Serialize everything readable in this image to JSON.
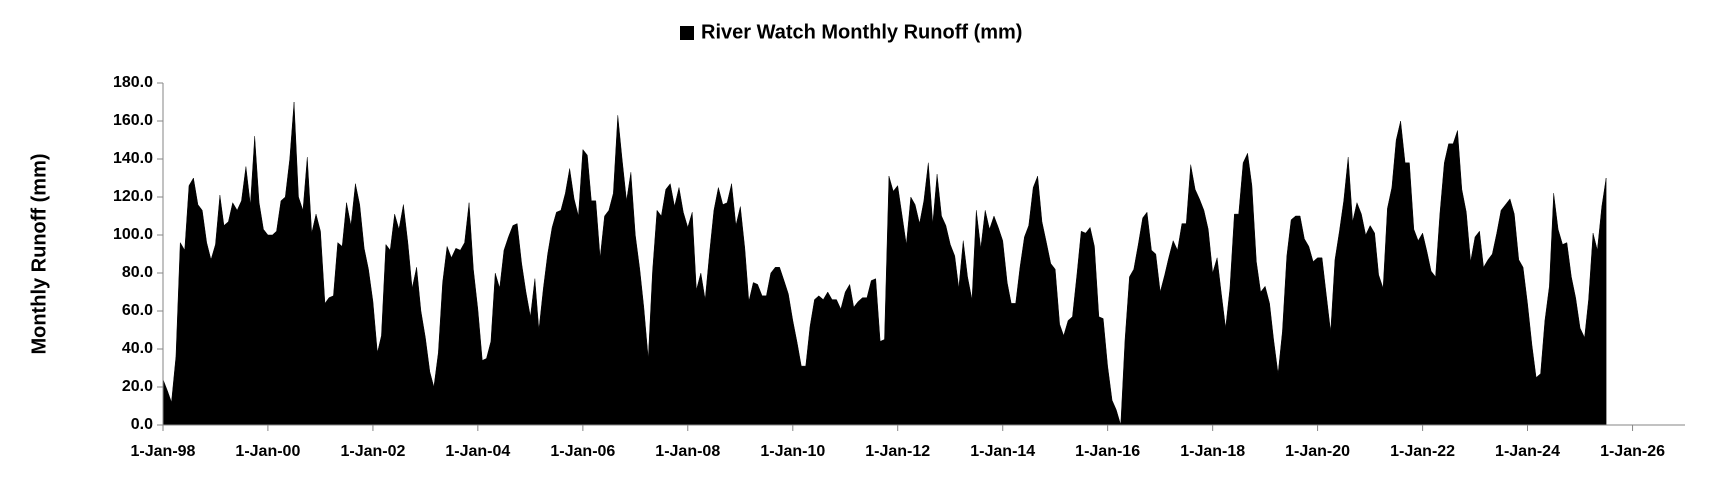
{
  "chart_data": {
    "type": "area",
    "y_label": "Monthly Runoff (mm)",
    "legend": "top",
    "x": [
      "1998-01-01",
      "1998-02-01",
      "1998-03-01",
      "1998-04-01",
      "1998-05-01",
      "1998-06-01",
      "1998-07-01",
      "1998-08-01",
      "1998-09-01",
      "1998-10-01",
      "1998-11-01",
      "1998-12-01",
      "1999-01-01",
      "1999-02-01",
      "1999-03-01",
      "1999-04-01",
      "1999-05-01",
      "1999-06-01",
      "1999-07-01",
      "1999-08-01",
      "1999-09-01",
      "1999-10-01",
      "1999-11-01",
      "1999-12-01",
      "2000-01-01",
      "2000-02-01",
      "2000-03-01",
      "2000-04-01",
      "2000-05-01",
      "2000-06-01",
      "2000-07-01",
      "2000-08-01",
      "2000-09-01",
      "2000-10-01",
      "2000-11-01",
      "2000-12-01",
      "2001-01-01",
      "2001-02-01",
      "2001-03-01",
      "2001-04-01",
      "2001-05-01",
      "2001-06-01",
      "2001-07-01",
      "2001-08-01",
      "2001-09-01",
      "2001-10-01",
      "2001-11-01",
      "2001-12-01",
      "2002-01-01",
      "2002-02-01",
      "2002-03-01",
      "2002-04-01",
      "2002-05-01",
      "2002-06-01",
      "2002-07-01",
      "2002-08-01",
      "2002-09-01",
      "2002-10-01",
      "2002-11-01",
      "2002-12-01",
      "2003-01-01",
      "2003-02-01",
      "2003-03-01",
      "2003-04-01",
      "2003-05-01",
      "2003-06-01",
      "2003-07-01",
      "2003-08-01",
      "2003-09-01",
      "2003-10-01",
      "2003-11-01",
      "2003-12-01",
      "2004-01-01",
      "2004-02-01",
      "2004-03-01",
      "2004-04-01",
      "2004-05-01",
      "2004-06-01",
      "2004-07-01",
      "2004-08-01",
      "2004-09-01",
      "2004-10-01",
      "2004-11-01",
      "2004-12-01",
      "2005-01-01",
      "2005-02-01",
      "2005-03-01",
      "2005-04-01",
      "2005-05-01",
      "2005-06-01",
      "2005-07-01",
      "2005-08-01",
      "2005-09-01",
      "2005-10-01",
      "2005-11-01",
      "2005-12-01",
      "2006-01-01",
      "2006-02-01",
      "2006-03-01",
      "2006-04-01",
      "2006-05-01",
      "2006-06-01",
      "2006-07-01",
      "2006-08-01",
      "2006-09-01",
      "2006-10-01",
      "2006-11-01",
      "2006-12-01",
      "2007-01-01",
      "2007-02-01",
      "2007-03-01",
      "2007-04-01",
      "2007-05-01",
      "2007-06-01",
      "2007-07-01",
      "2007-08-01",
      "2007-09-01",
      "2007-10-01",
      "2007-11-01",
      "2007-12-01",
      "2008-01-01",
      "2008-02-01",
      "2008-03-01",
      "2008-04-01",
      "2008-05-01",
      "2008-06-01",
      "2008-07-01",
      "2008-08-01",
      "2008-09-01",
      "2008-10-01",
      "2008-11-01",
      "2008-12-01",
      "2009-01-01",
      "2009-02-01",
      "2009-03-01",
      "2009-04-01",
      "2009-05-01",
      "2009-06-01",
      "2009-07-01",
      "2009-08-01",
      "2009-09-01",
      "2009-10-01",
      "2009-11-01",
      "2009-12-01",
      "2010-01-01",
      "2010-02-01",
      "2010-03-01",
      "2010-04-01",
      "2010-05-01",
      "2010-06-01",
      "2010-07-01",
      "2010-08-01",
      "2010-09-01",
      "2010-10-01",
      "2010-11-01",
      "2010-12-01",
      "2011-01-01",
      "2011-02-01",
      "2011-03-01",
      "2011-04-01",
      "2011-05-01",
      "2011-06-01",
      "2011-07-01",
      "2011-08-01",
      "2011-09-01",
      "2011-10-01",
      "2011-11-01",
      "2011-12-01",
      "2012-01-01",
      "2012-02-01",
      "2012-03-01",
      "2012-04-01",
      "2012-05-01",
      "2012-06-01",
      "2012-07-01",
      "2012-08-01",
      "2012-09-01",
      "2012-10-01",
      "2012-11-01",
      "2012-12-01",
      "2013-01-01",
      "2013-02-01",
      "2013-03-01",
      "2013-04-01",
      "2013-05-01",
      "2013-06-01",
      "2013-07-01",
      "2013-08-01",
      "2013-09-01",
      "2013-10-01",
      "2013-11-01",
      "2013-12-01",
      "2014-01-01",
      "2014-02-01",
      "2014-03-01",
      "2014-04-01",
      "2014-05-01",
      "2014-06-01",
      "2014-07-01",
      "2014-08-01",
      "2014-09-01",
      "2014-10-01",
      "2014-11-01",
      "2014-12-01",
      "2015-01-01",
      "2015-02-01",
      "2015-03-01",
      "2015-04-01",
      "2015-05-01",
      "2015-06-01",
      "2015-07-01",
      "2015-08-01",
      "2015-09-01",
      "2015-10-01",
      "2015-11-01",
      "2015-12-01",
      "2016-01-01",
      "2016-02-01",
      "2016-03-01",
      "2016-04-01",
      "2016-05-01",
      "2016-06-01",
      "2016-07-01",
      "2016-08-01",
      "2016-09-01",
      "2016-10-01",
      "2016-11-01",
      "2016-12-01",
      "2017-01-01",
      "2017-02-01",
      "2017-03-01",
      "2017-04-01",
      "2017-05-01",
      "2017-06-01",
      "2017-07-01",
      "2017-08-01",
      "2017-09-01",
      "2017-10-01",
      "2017-11-01",
      "2017-12-01",
      "2018-01-01",
      "2018-02-01",
      "2018-03-01",
      "2018-04-01",
      "2018-05-01",
      "2018-06-01",
      "2018-07-01",
      "2018-08-01",
      "2018-09-01",
      "2018-10-01",
      "2018-11-01",
      "2018-12-01",
      "2019-01-01",
      "2019-02-01",
      "2019-03-01",
      "2019-04-01",
      "2019-05-01",
      "2019-06-01",
      "2019-07-01",
      "2019-08-01",
      "2019-09-01",
      "2019-10-01",
      "2019-11-01",
      "2019-12-01",
      "2020-01-01",
      "2020-02-01",
      "2020-03-01",
      "2020-04-01",
      "2020-05-01",
      "2020-06-01",
      "2020-07-01",
      "2020-08-01",
      "2020-09-01",
      "2020-10-01",
      "2020-11-01",
      "2020-12-01",
      "2021-01-01",
      "2021-02-01",
      "2021-03-01",
      "2021-04-01",
      "2021-05-01",
      "2021-06-01",
      "2021-07-01",
      "2021-08-01",
      "2021-09-01",
      "2021-10-01",
      "2021-11-01",
      "2021-12-01",
      "2022-01-01",
      "2022-02-01",
      "2022-03-01",
      "2022-04-01",
      "2022-05-01",
      "2022-06-01",
      "2022-07-01",
      "2022-08-01",
      "2022-09-01",
      "2022-10-01",
      "2022-11-01",
      "2022-12-01",
      "2023-01-01",
      "2023-02-01",
      "2023-03-01",
      "2023-04-01",
      "2023-05-01",
      "2023-06-01",
      "2023-07-01",
      "2023-08-01",
      "2023-09-01",
      "2023-10-01",
      "2023-11-01",
      "2023-12-01",
      "2024-01-01",
      "2024-02-01",
      "2024-03-01",
      "2024-04-01",
      "2024-05-01",
      "2024-06-01",
      "2024-07-01",
      "2024-08-01",
      "2024-09-01",
      "2024-10-01",
      "2024-11-01",
      "2024-12-01",
      "2025-01-01",
      "2025-02-01",
      "2025-03-01",
      "2025-04-01",
      "2025-05-01",
      "2025-06-01",
      "2025-07-01"
    ],
    "series": [
      {
        "name": "River Watch Monthly Runoff (mm)",
        "color": "#000000",
        "values": [
          24,
          18,
          12,
          36,
          96,
          92,
          126,
          130,
          116,
          113,
          96,
          87,
          95,
          121,
          105,
          107,
          117,
          113,
          118,
          136,
          116,
          152,
          117,
          103,
          100,
          100,
          102,
          118,
          120,
          140,
          170,
          120,
          113,
          141,
          101,
          111,
          102,
          64,
          67,
          68,
          96,
          94,
          117,
          105,
          127,
          116,
          93,
          82,
          65,
          38,
          47,
          95,
          92,
          111,
          103,
          116,
          96,
          72,
          83,
          60,
          46,
          28,
          20,
          38,
          75,
          94,
          88,
          93,
          92,
          96,
          117,
          82,
          61,
          34,
          35,
          44,
          80,
          72,
          92,
          99,
          105,
          106,
          85,
          70,
          57,
          77,
          50,
          72,
          90,
          104,
          112,
          113,
          122,
          135,
          119,
          110,
          145,
          142,
          118,
          118,
          88,
          110,
          113,
          122,
          163,
          140,
          118,
          133,
          100,
          82,
          62,
          35,
          81,
          113,
          110,
          124,
          127,
          115,
          125,
          112,
          104,
          112,
          71,
          80,
          66,
          91,
          113,
          125,
          116,
          117,
          127,
          105,
          115,
          93,
          65,
          75,
          74,
          68,
          68,
          80,
          83,
          83,
          76,
          69,
          55,
          43,
          31,
          31,
          52,
          66,
          68,
          66,
          70,
          66,
          66,
          61,
          70,
          74,
          62,
          65,
          67,
          67,
          76,
          77,
          44,
          45,
          131,
          123,
          126,
          110,
          95,
          120,
          116,
          106,
          118,
          138,
          106,
          132,
          110,
          105,
          95,
          89,
          72,
          97,
          78,
          66,
          113,
          93,
          113,
          103,
          110,
          104,
          97,
          75,
          64,
          64,
          83,
          99,
          105,
          125,
          131,
          107,
          96,
          85,
          82,
          53,
          47,
          55,
          57,
          79,
          102,
          101,
          104,
          94,
          57,
          56,
          31,
          13,
          8,
          0,
          45,
          78,
          82,
          95,
          109,
          112,
          92,
          90,
          70,
          79,
          88,
          97,
          92,
          106,
          106,
          137,
          124,
          119,
          113,
          103,
          80,
          88,
          70,
          51,
          72,
          111,
          111,
          138,
          143,
          126,
          86,
          70,
          73,
          64,
          45,
          27,
          49,
          89,
          108,
          110,
          110,
          98,
          94,
          86,
          88,
          88,
          69,
          49,
          87,
          102,
          118,
          141,
          107,
          117,
          111,
          100,
          105,
          101,
          79,
          72,
          114,
          125,
          150,
          160,
          138,
          138,
          103,
          97,
          101,
          91,
          81,
          78,
          111,
          138,
          148,
          148,
          155,
          124,
          112,
          86,
          99,
          102,
          83,
          87,
          90,
          101,
          113,
          116,
          119,
          111,
          87,
          83,
          64,
          42,
          25,
          27,
          55,
          73,
          122,
          103,
          95,
          96,
          78,
          67,
          51,
          46,
          66,
          101,
          92,
          115,
          130
        ]
      }
    ],
    "xlim": [
      "1998-01-01",
      "2027-01-01"
    ],
    "xticks": [
      {
        "value": "1998-01-01",
        "label": "1-Jan-98"
      },
      {
        "value": "2000-01-01",
        "label": "1-Jan-00"
      },
      {
        "value": "2002-01-01",
        "label": "1-Jan-02"
      },
      {
        "value": "2004-01-01",
        "label": "1-Jan-04"
      },
      {
        "value": "2006-01-01",
        "label": "1-Jan-06"
      },
      {
        "value": "2008-01-01",
        "label": "1-Jan-08"
      },
      {
        "value": "2010-01-01",
        "label": "1-Jan-10"
      },
      {
        "value": "2012-01-01",
        "label": "1-Jan-12"
      },
      {
        "value": "2014-01-01",
        "label": "1-Jan-14"
      },
      {
        "value": "2016-01-01",
        "label": "1-Jan-16"
      },
      {
        "value": "2018-01-01",
        "label": "1-Jan-18"
      },
      {
        "value": "2020-01-01",
        "label": "1-Jan-20"
      },
      {
        "value": "2022-01-01",
        "label": "1-Jan-22"
      },
      {
        "value": "2024-01-01",
        "label": "1-Jan-24"
      },
      {
        "value": "2026-01-01",
        "label": "1-Jan-26"
      }
    ],
    "ylim": [
      0,
      180
    ],
    "yticks": [
      {
        "value": 0,
        "label": "0.0"
      },
      {
        "value": 20,
        "label": "20.0"
      },
      {
        "value": 40,
        "label": "40.0"
      },
      {
        "value": 60,
        "label": "60.0"
      },
      {
        "value": 80,
        "label": "80.0"
      },
      {
        "value": 100,
        "label": "100.0"
      },
      {
        "value": 120,
        "label": "120.0"
      },
      {
        "value": 140,
        "label": "140.0"
      },
      {
        "value": 160,
        "label": "160.0"
      },
      {
        "value": 180,
        "label": "180.0"
      }
    ],
    "grid": false
  }
}
